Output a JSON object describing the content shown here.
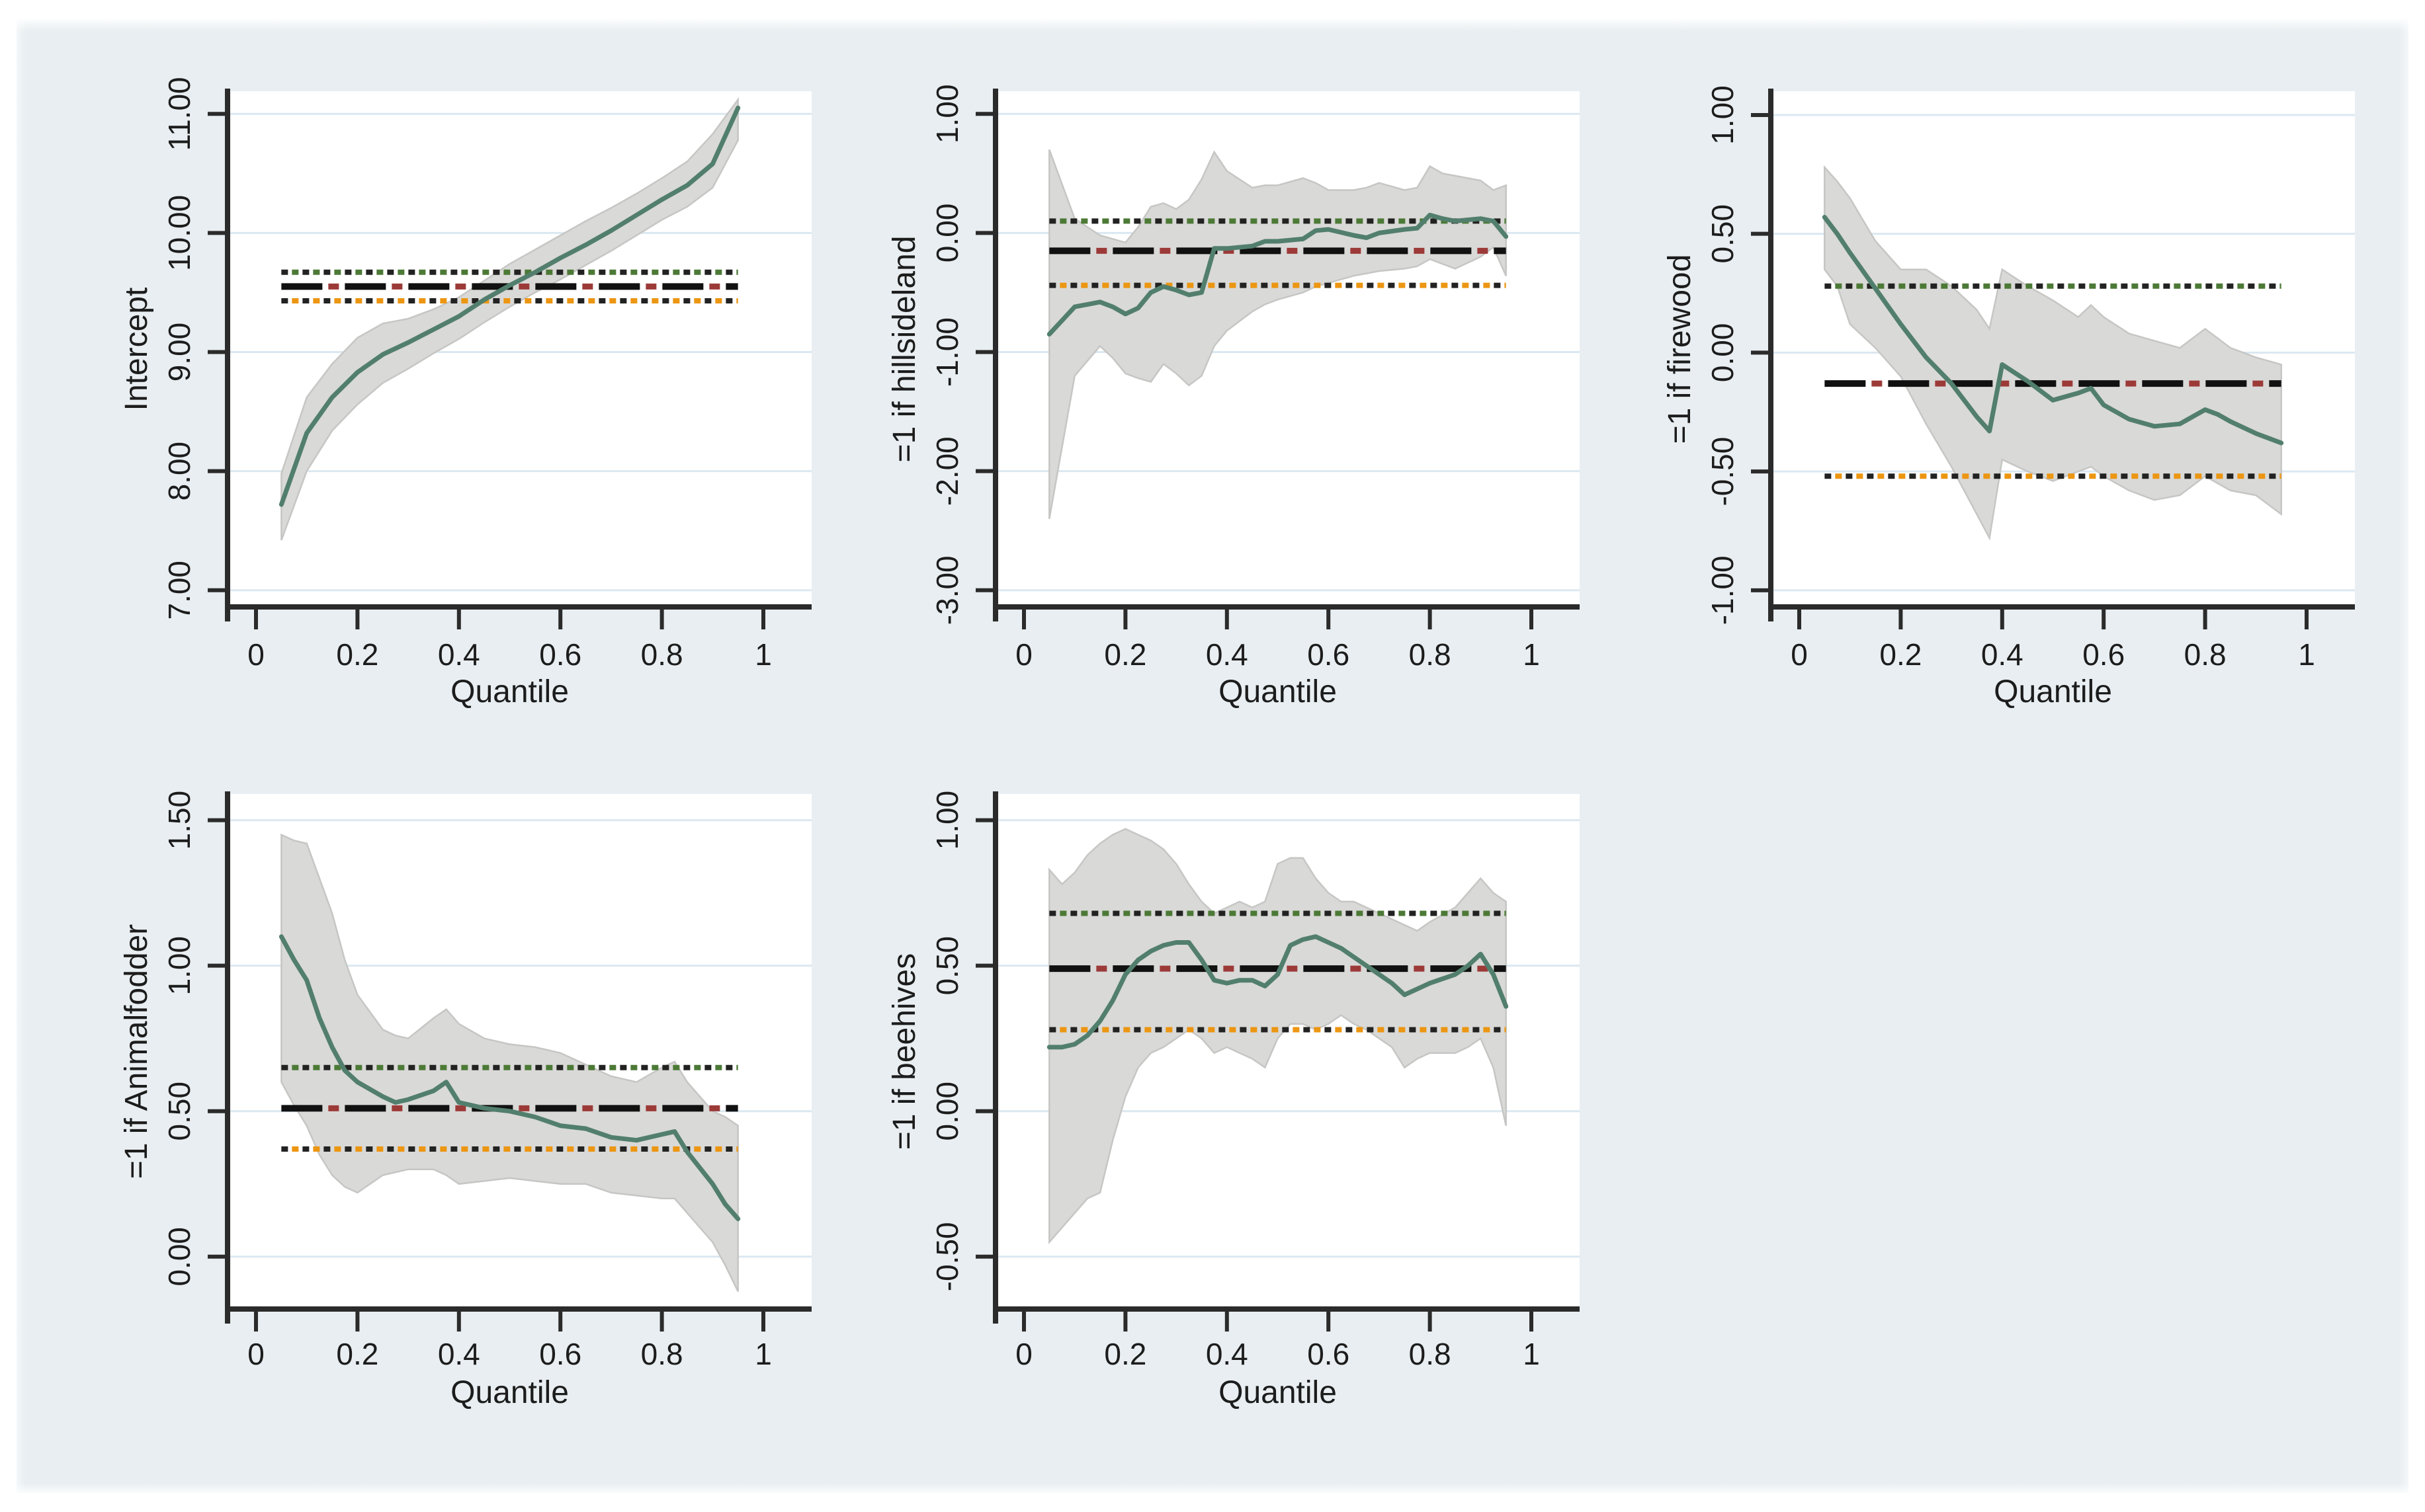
{
  "figure": {
    "type": "quantile-regression-panel-grid",
    "panel_count": 5,
    "x_axis_title": "Quantile",
    "x_tick_labels": [
      "0",
      "0.2",
      "0.4",
      "0.6",
      "0.8",
      "1"
    ],
    "x_tick_values": [
      0,
      0.2,
      0.4,
      0.6,
      0.8,
      1
    ],
    "colors": {
      "figure_background": "#e8eef1",
      "plot_background": "#ffffff",
      "gridline": "#dbe8f1",
      "axis": "#2b2b2b",
      "tick_text": "#1c1c1c",
      "quantile_line": "#527f6d",
      "confidence_band_fill": "#d9d9d7",
      "confidence_band_edge": "#c6c6c4",
      "ols_dash_black": "#111111",
      "ols_dash_red": "#9c3a38",
      "ols_ci_dot_black": "#222222",
      "ols_ci_dot_green": "#4c7a36",
      "ols_ci_dot_orange": "#ec9612"
    }
  },
  "chart_data": [
    {
      "id": "intercept",
      "type": "line",
      "row": 0,
      "col": 0,
      "ylabel": "Intercept",
      "xlabel": "Quantile",
      "y_tick_labels": [
        "11.00",
        "10.00",
        "9.00",
        "8.00",
        "7.00"
      ],
      "y_tick_values": [
        11,
        10,
        9,
        8,
        7
      ],
      "ylim": [
        6.86,
        11.19
      ],
      "xlim": [
        0,
        1
      ],
      "series": {
        "quantile": [
          0.05,
          0.1,
          0.15,
          0.2,
          0.25,
          0.3,
          0.35,
          0.4,
          0.45,
          0.5,
          0.55,
          0.6,
          0.65,
          0.7,
          0.75,
          0.8,
          0.85,
          0.9,
          0.95
        ],
        "qreg_estimate": [
          7.72,
          8.32,
          8.62,
          8.83,
          8.98,
          9.08,
          9.19,
          9.3,
          9.44,
          9.56,
          9.67,
          9.79,
          9.9,
          10.02,
          10.15,
          10.28,
          10.4,
          10.58,
          11.05
        ],
        "ci_lower": [
          7.42,
          8.0,
          8.34,
          8.56,
          8.74,
          8.86,
          8.99,
          9.11,
          9.25,
          9.38,
          9.5,
          9.61,
          9.73,
          9.85,
          9.98,
          10.11,
          10.22,
          10.38,
          10.78
        ],
        "ci_upper": [
          7.98,
          8.62,
          8.9,
          9.12,
          9.24,
          9.28,
          9.36,
          9.46,
          9.6,
          9.74,
          9.86,
          9.98,
          10.1,
          10.21,
          10.33,
          10.46,
          10.6,
          10.83,
          11.12
        ],
        "ols_estimate": 9.55,
        "ols_ci_upper": 9.67,
        "ols_ci_lower": 9.43
      }
    },
    {
      "id": "hillsideland",
      "type": "line",
      "row": 0,
      "col": 1,
      "ylabel": "=1 if hillsideland",
      "xlabel": "Quantile",
      "y_tick_labels": [
        "1.00",
        "0.00",
        "-1.00",
        "-2.00",
        "-3.00"
      ],
      "y_tick_values": [
        1,
        0,
        -1,
        -2,
        -3
      ],
      "ylim": [
        -3.14,
        1.19
      ],
      "xlim": [
        0,
        1
      ],
      "series": {
        "quantile": [
          0.05,
          0.1,
          0.15,
          0.175,
          0.2,
          0.225,
          0.25,
          0.275,
          0.3,
          0.325,
          0.35,
          0.375,
          0.4,
          0.45,
          0.475,
          0.5,
          0.55,
          0.575,
          0.6,
          0.65,
          0.675,
          0.7,
          0.75,
          0.775,
          0.8,
          0.825,
          0.85,
          0.9,
          0.925,
          0.95
        ],
        "qreg_estimate": [
          -0.85,
          -0.62,
          -0.58,
          -0.62,
          -0.68,
          -0.63,
          -0.5,
          -0.45,
          -0.48,
          -0.52,
          -0.5,
          -0.13,
          -0.13,
          -0.11,
          -0.07,
          -0.07,
          -0.05,
          0.02,
          0.03,
          -0.02,
          -0.04,
          0.0,
          0.03,
          0.04,
          0.15,
          0.12,
          0.1,
          0.12,
          0.1,
          -0.03
        ],
        "ci_upper": [
          0.7,
          0.12,
          -0.02,
          -0.05,
          -0.08,
          0.05,
          0.22,
          0.25,
          0.2,
          0.28,
          0.45,
          0.68,
          0.52,
          0.38,
          0.4,
          0.4,
          0.46,
          0.42,
          0.36,
          0.36,
          0.38,
          0.42,
          0.36,
          0.38,
          0.56,
          0.5,
          0.48,
          0.44,
          0.36,
          0.4
        ],
        "ci_lower": [
          -2.4,
          -1.2,
          -0.95,
          -1.05,
          -1.18,
          -1.22,
          -1.25,
          -1.1,
          -1.18,
          -1.28,
          -1.2,
          -0.95,
          -0.82,
          -0.66,
          -0.6,
          -0.56,
          -0.5,
          -0.45,
          -0.42,
          -0.36,
          -0.34,
          -0.32,
          -0.3,
          -0.28,
          -0.22,
          -0.26,
          -0.3,
          -0.2,
          -0.12,
          -0.36
        ],
        "ols_estimate": -0.15,
        "ols_ci_upper": 0.1,
        "ols_ci_lower": -0.44
      }
    },
    {
      "id": "firewood",
      "type": "line",
      "row": 0,
      "col": 2,
      "ylabel": "=1 if firewood",
      "xlabel": "Quantile",
      "y_tick_labels": [
        "1.00",
        "0.50",
        "0.00",
        "-0.50",
        "-1.00"
      ],
      "y_tick_values": [
        1,
        0.5,
        0,
        -0.5,
        -1
      ],
      "ylim": [
        -1.07,
        1.1
      ],
      "xlim": [
        0,
        1
      ],
      "series": {
        "quantile": [
          0.05,
          0.075,
          0.1,
          0.15,
          0.2,
          0.25,
          0.3,
          0.35,
          0.375,
          0.4,
          0.45,
          0.5,
          0.55,
          0.575,
          0.6,
          0.65,
          0.7,
          0.75,
          0.8,
          0.825,
          0.85,
          0.9,
          0.95
        ],
        "qreg_estimate": [
          0.57,
          0.5,
          0.42,
          0.27,
          0.12,
          -0.02,
          -0.13,
          -0.27,
          -0.33,
          -0.05,
          -0.12,
          -0.2,
          -0.17,
          -0.15,
          -0.22,
          -0.28,
          -0.31,
          -0.3,
          -0.24,
          -0.26,
          -0.29,
          -0.34,
          -0.38
        ],
        "ci_upper": [
          0.78,
          0.72,
          0.65,
          0.47,
          0.35,
          0.35,
          0.28,
          0.18,
          0.1,
          0.35,
          0.28,
          0.22,
          0.15,
          0.2,
          0.15,
          0.08,
          0.05,
          0.02,
          0.1,
          0.06,
          0.02,
          -0.02,
          -0.05
        ],
        "ci_lower": [
          0.35,
          0.28,
          0.12,
          0.02,
          -0.1,
          -0.3,
          -0.48,
          -0.68,
          -0.78,
          -0.45,
          -0.5,
          -0.54,
          -0.5,
          -0.48,
          -0.52,
          -0.58,
          -0.62,
          -0.6,
          -0.52,
          -0.55,
          -0.58,
          -0.6,
          -0.68
        ],
        "ols_estimate": -0.13,
        "ols_ci_upper": 0.28,
        "ols_ci_lower": -0.52
      }
    },
    {
      "id": "animalfodder",
      "type": "line",
      "row": 1,
      "col": 0,
      "ylabel": "=1 if Animalfodder",
      "xlabel": "Quantile",
      "y_tick_labels": [
        "1.50",
        "1.00",
        "0.50",
        "0.00"
      ],
      "y_tick_values": [
        1.5,
        1,
        0.5,
        0
      ],
      "ylim": [
        -0.18,
        1.59
      ],
      "xlim": [
        0,
        1
      ],
      "series": {
        "quantile": [
          0.05,
          0.075,
          0.1,
          0.125,
          0.15,
          0.175,
          0.2,
          0.25,
          0.275,
          0.3,
          0.35,
          0.375,
          0.4,
          0.45,
          0.5,
          0.55,
          0.6,
          0.65,
          0.7,
          0.75,
          0.8,
          0.825,
          0.85,
          0.9,
          0.925,
          0.95
        ],
        "qreg_estimate": [
          1.1,
          1.02,
          0.95,
          0.82,
          0.72,
          0.64,
          0.6,
          0.55,
          0.53,
          0.54,
          0.57,
          0.6,
          0.53,
          0.51,
          0.5,
          0.48,
          0.45,
          0.44,
          0.41,
          0.4,
          0.42,
          0.43,
          0.36,
          0.25,
          0.18,
          0.13
        ],
        "ci_upper": [
          1.45,
          1.43,
          1.42,
          1.3,
          1.18,
          1.02,
          0.9,
          0.78,
          0.76,
          0.75,
          0.82,
          0.85,
          0.8,
          0.75,
          0.73,
          0.72,
          0.7,
          0.66,
          0.62,
          0.6,
          0.65,
          0.67,
          0.6,
          0.5,
          0.48,
          0.45
        ],
        "ci_lower": [
          0.6,
          0.52,
          0.45,
          0.35,
          0.28,
          0.24,
          0.22,
          0.28,
          0.29,
          0.3,
          0.3,
          0.28,
          0.25,
          0.26,
          0.27,
          0.26,
          0.25,
          0.25,
          0.22,
          0.21,
          0.2,
          0.2,
          0.15,
          0.05,
          -0.03,
          -0.12
        ],
        "ols_estimate": 0.51,
        "ols_ci_upper": 0.65,
        "ols_ci_lower": 0.37
      }
    },
    {
      "id": "beehives",
      "type": "line",
      "row": 1,
      "col": 1,
      "ylabel": "=1 if beehives",
      "xlabel": "Quantile",
      "y_tick_labels": [
        "1.00",
        "0.50",
        "0.00",
        "-0.50"
      ],
      "y_tick_values": [
        1,
        0.5,
        0,
        -0.5
      ],
      "ylim": [
        -0.68,
        1.09
      ],
      "xlim": [
        0,
        1
      ],
      "series": {
        "quantile": [
          0.05,
          0.075,
          0.1,
          0.125,
          0.15,
          0.175,
          0.2,
          0.225,
          0.25,
          0.275,
          0.3,
          0.325,
          0.35,
          0.375,
          0.4,
          0.425,
          0.45,
          0.475,
          0.5,
          0.525,
          0.55,
          0.575,
          0.6,
          0.625,
          0.65,
          0.675,
          0.7,
          0.725,
          0.75,
          0.775,
          0.8,
          0.85,
          0.875,
          0.9,
          0.925,
          0.95
        ],
        "qreg_estimate": [
          0.22,
          0.22,
          0.23,
          0.26,
          0.31,
          0.38,
          0.47,
          0.52,
          0.55,
          0.57,
          0.58,
          0.58,
          0.52,
          0.45,
          0.44,
          0.45,
          0.45,
          0.43,
          0.47,
          0.57,
          0.59,
          0.6,
          0.58,
          0.56,
          0.53,
          0.5,
          0.47,
          0.44,
          0.4,
          0.42,
          0.44,
          0.47,
          0.5,
          0.54,
          0.47,
          0.36
        ],
        "ci_upper": [
          0.83,
          0.78,
          0.82,
          0.88,
          0.92,
          0.95,
          0.97,
          0.95,
          0.93,
          0.9,
          0.85,
          0.78,
          0.72,
          0.68,
          0.7,
          0.72,
          0.7,
          0.72,
          0.85,
          0.87,
          0.87,
          0.8,
          0.75,
          0.72,
          0.72,
          0.7,
          0.68,
          0.66,
          0.64,
          0.62,
          0.65,
          0.7,
          0.75,
          0.8,
          0.75,
          0.72
        ],
        "ci_lower": [
          -0.45,
          -0.4,
          -0.35,
          -0.3,
          -0.28,
          -0.1,
          0.05,
          0.15,
          0.2,
          0.22,
          0.25,
          0.28,
          0.25,
          0.2,
          0.22,
          0.2,
          0.18,
          0.15,
          0.25,
          0.3,
          0.3,
          0.28,
          0.3,
          0.33,
          0.3,
          0.28,
          0.25,
          0.22,
          0.15,
          0.18,
          0.2,
          0.2,
          0.22,
          0.25,
          0.15,
          -0.05
        ],
        "ols_estimate": 0.49,
        "ols_ci_upper": 0.68,
        "ols_ci_lower": 0.28
      }
    }
  ]
}
